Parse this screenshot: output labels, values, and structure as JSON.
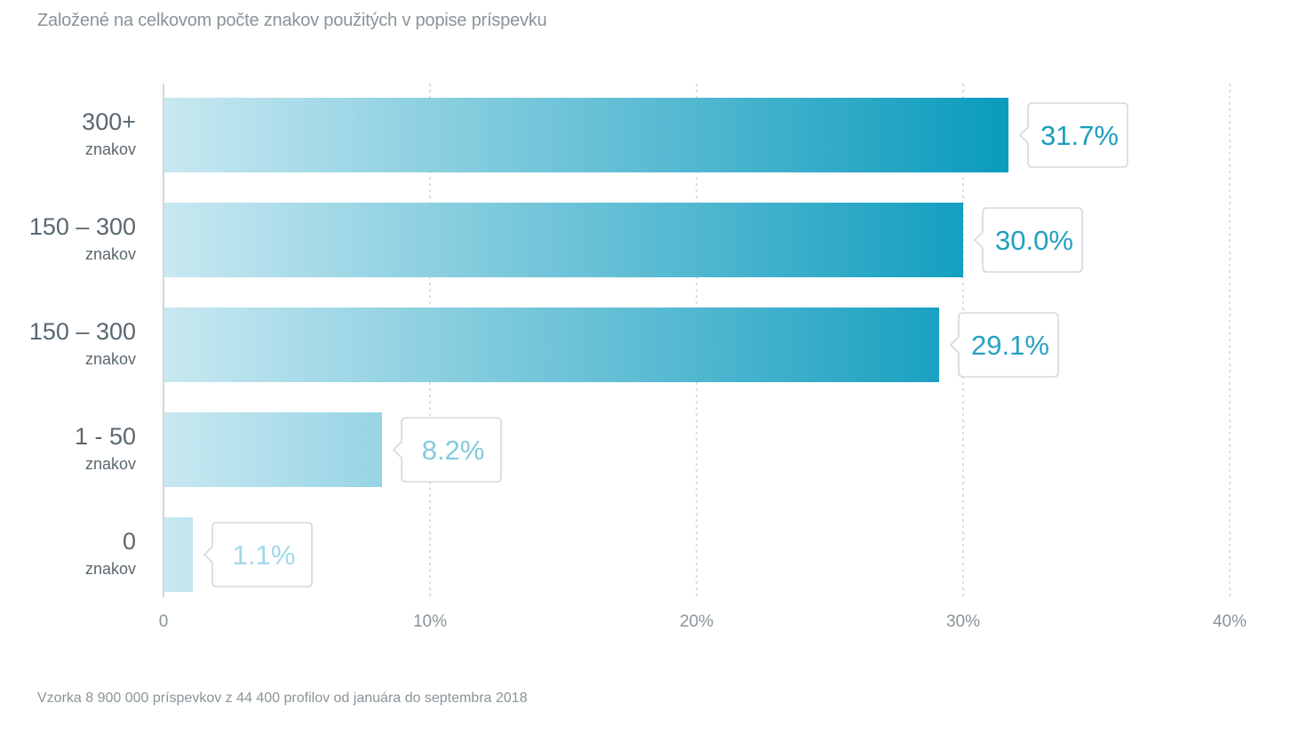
{
  "subtitle": "Založené na celkovom počte znakov použitých v popise príspevku",
  "footnote": "Vzorka 8 900 000 príspevkov z 44 400 profilov od januára do septembra 2018",
  "chart_data": {
    "type": "bar",
    "orientation": "horizontal",
    "categories": [
      {
        "main": "300+",
        "sub": "znakov"
      },
      {
        "main": "150 – 300",
        "sub": "znakov"
      },
      {
        "main": "150 – 300",
        "sub": "znakov"
      },
      {
        "main": "1 - 50",
        "sub": "znakov"
      },
      {
        "main": "0",
        "sub": "znakov"
      }
    ],
    "values": [
      31.7,
      30.0,
      29.1,
      8.2,
      1.1
    ],
    "value_labels": [
      "31.7%",
      "30.0%",
      "29.1%",
      "8.2%",
      "1.1%"
    ],
    "xlim": [
      0,
      40
    ],
    "x_ticks": [
      0,
      10,
      20,
      30,
      40
    ],
    "x_tick_labels": [
      "0",
      "10%",
      "20%",
      "30%",
      "40%"
    ],
    "grid": "vertical dashed",
    "colors": {
      "bar_start": "#c8e8f1",
      "bar_end": "#0a9bbd",
      "label_text_strong": "#1a9dbf",
      "label_text_light": "#a7dbe9",
      "box_border": "#d3d8db",
      "grid": "#c4c9cc",
      "axis": "#c4c9cc"
    }
  }
}
